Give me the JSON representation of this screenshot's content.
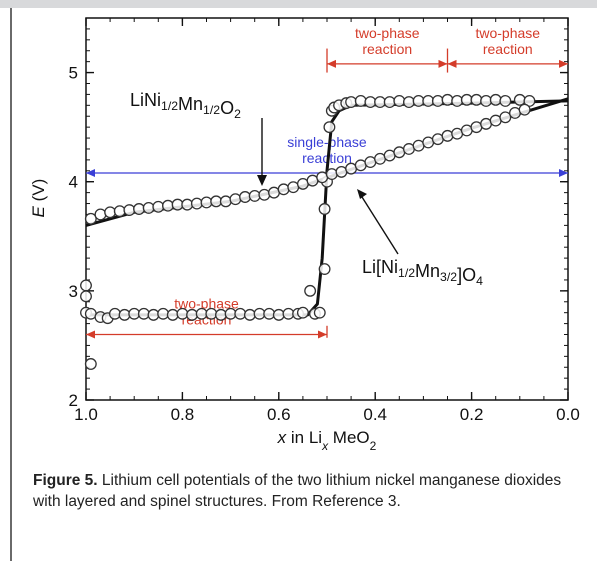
{
  "chart_data": {
    "type": "scatter",
    "xlim": [
      1.0,
      0.0
    ],
    "ylim": [
      2,
      5.5
    ],
    "x_ticks": [
      "1.0",
      "0.8",
      "0.6",
      "0.4",
      "0.2",
      "0.0"
    ],
    "y_ticks": [
      "2",
      "3",
      "4",
      "5"
    ],
    "ylabel_main": "E",
    "ylabel_unit": " (V)",
    "xlabel": {
      "pre": "x",
      "mid": " in Li",
      "sub1": "x",
      "post": " MeO",
      "sub2": "2"
    },
    "series": [
      {
        "label_parts": [
          {
            "t": "LiNi",
            "s": false
          },
          {
            "t": "1/2",
            "s": true
          },
          {
            "t": "Mn",
            "s": false
          },
          {
            "t": "1/2",
            "s": true
          },
          {
            "t": "O",
            "s": false
          },
          {
            "t": "2",
            "s": true
          }
        ],
        "points": [
          [
            1.0,
            2.8
          ],
          [
            0.99,
            2.79
          ],
          [
            0.97,
            2.76
          ],
          [
            0.955,
            2.75
          ],
          [
            0.94,
            2.79
          ],
          [
            0.92,
            2.78
          ],
          [
            0.9,
            2.79
          ],
          [
            0.88,
            2.79
          ],
          [
            0.86,
            2.78
          ],
          [
            0.84,
            2.79
          ],
          [
            0.82,
            2.78
          ],
          [
            0.8,
            2.79
          ],
          [
            0.78,
            2.78
          ],
          [
            0.76,
            2.79
          ],
          [
            0.74,
            2.79
          ],
          [
            0.72,
            2.78
          ],
          [
            0.7,
            2.79
          ],
          [
            0.68,
            2.79
          ],
          [
            0.66,
            2.78
          ],
          [
            0.64,
            2.79
          ],
          [
            0.62,
            2.79
          ],
          [
            0.6,
            2.78
          ],
          [
            0.58,
            2.79
          ],
          [
            0.56,
            2.79
          ],
          [
            0.55,
            2.8
          ],
          [
            0.535,
            3.0
          ],
          [
            0.525,
            2.79
          ],
          [
            0.515,
            2.8
          ],
          [
            0.505,
            3.2
          ],
          [
            0.505,
            3.75
          ],
          [
            0.5,
            4.0
          ],
          [
            0.495,
            4.5
          ],
          [
            0.49,
            4.65
          ],
          [
            0.485,
            4.68
          ],
          [
            0.475,
            4.7
          ],
          [
            0.46,
            4.72
          ],
          [
            0.45,
            4.73
          ],
          [
            0.43,
            4.74
          ],
          [
            0.41,
            4.73
          ],
          [
            0.39,
            4.73
          ],
          [
            0.37,
            4.73
          ],
          [
            0.35,
            4.74
          ],
          [
            0.33,
            4.73
          ],
          [
            0.31,
            4.74
          ],
          [
            0.29,
            4.74
          ],
          [
            0.27,
            4.74
          ],
          [
            0.25,
            4.75
          ],
          [
            0.23,
            4.74
          ],
          [
            0.21,
            4.75
          ],
          [
            0.19,
            4.75
          ],
          [
            0.17,
            4.74
          ],
          [
            0.15,
            4.75
          ],
          [
            0.13,
            4.74
          ],
          [
            0.1,
            4.75
          ],
          [
            0.08,
            4.74
          ],
          [
            1.0,
            3.05
          ],
          [
            1.0,
            2.95
          ],
          [
            0.99,
            2.33
          ]
        ],
        "curve": [
          [
            1.0,
            2.78
          ],
          [
            0.6,
            2.78
          ],
          [
            0.54,
            2.78
          ],
          [
            0.52,
            2.88
          ],
          [
            0.51,
            3.3
          ],
          [
            0.5,
            4.1
          ],
          [
            0.49,
            4.55
          ],
          [
            0.475,
            4.65
          ],
          [
            0.45,
            4.7
          ],
          [
            0.2,
            4.72
          ],
          [
            0.0,
            4.74
          ]
        ]
      },
      {
        "label_parts": [
          {
            "t": "Li[Ni",
            "s": false
          },
          {
            "t": "1/2",
            "s": true
          },
          {
            "t": "Mn",
            "s": false
          },
          {
            "t": "3/2",
            "s": true
          },
          {
            "t": "]O",
            "s": false
          },
          {
            "t": "4",
            "s": true
          }
        ],
        "points": [
          [
            0.99,
            3.66
          ],
          [
            0.97,
            3.7
          ],
          [
            0.95,
            3.72
          ],
          [
            0.93,
            3.73
          ],
          [
            0.91,
            3.74
          ],
          [
            0.89,
            3.75
          ],
          [
            0.87,
            3.76
          ],
          [
            0.85,
            3.77
          ],
          [
            0.83,
            3.78
          ],
          [
            0.81,
            3.79
          ],
          [
            0.79,
            3.79
          ],
          [
            0.77,
            3.8
          ],
          [
            0.75,
            3.81
          ],
          [
            0.73,
            3.82
          ],
          [
            0.71,
            3.82
          ],
          [
            0.69,
            3.84
          ],
          [
            0.67,
            3.86
          ],
          [
            0.65,
            3.87
          ],
          [
            0.63,
            3.88
          ],
          [
            0.61,
            3.9
          ],
          [
            0.59,
            3.93
          ],
          [
            0.57,
            3.95
          ],
          [
            0.55,
            3.98
          ],
          [
            0.53,
            4.01
          ],
          [
            0.51,
            4.04
          ],
          [
            0.49,
            4.07
          ],
          [
            0.47,
            4.09
          ],
          [
            0.45,
            4.12
          ],
          [
            0.43,
            4.15
          ],
          [
            0.41,
            4.18
          ],
          [
            0.39,
            4.21
          ],
          [
            0.37,
            4.24
          ],
          [
            0.35,
            4.27
          ],
          [
            0.33,
            4.3
          ],
          [
            0.31,
            4.33
          ],
          [
            0.29,
            4.36
          ],
          [
            0.27,
            4.39
          ],
          [
            0.25,
            4.42
          ],
          [
            0.23,
            4.44
          ],
          [
            0.21,
            4.47
          ],
          [
            0.19,
            4.5
          ],
          [
            0.17,
            4.53
          ],
          [
            0.15,
            4.56
          ],
          [
            0.13,
            4.59
          ],
          [
            0.11,
            4.63
          ],
          [
            0.09,
            4.66
          ]
        ],
        "curve": [
          [
            1.0,
            3.6
          ],
          [
            0.9,
            3.72
          ],
          [
            0.7,
            3.82
          ],
          [
            0.55,
            3.96
          ],
          [
            0.4,
            4.19
          ],
          [
            0.2,
            4.49
          ],
          [
            0.0,
            4.76
          ]
        ]
      }
    ],
    "annotations": {
      "single_phase": {
        "line1": "single-phase",
        "line2": "reaction",
        "y": 4.08,
        "x_from": 1.0,
        "x_to": 0.0
      },
      "two_phase_bottom": {
        "line1": "two-phase",
        "line2": "reaction",
        "y": 2.6,
        "x_from": 1.0,
        "x_to": 0.5
      },
      "two_phase_top_left": {
        "line1": "two-phase",
        "line2": "reaction",
        "y": 5.08,
        "x_from": 0.5,
        "x_to": 0.25
      },
      "two_phase_top_right": {
        "line1": "two-phase",
        "line2": "reaction",
        "y": 5.08,
        "x_from": 0.25,
        "x_to": 0.0
      }
    },
    "colors": {
      "blue": "#3a3fd6",
      "red": "#d43c2a",
      "axis": "#111111",
      "marker_edge": "#333333",
      "curve": "#111111"
    }
  },
  "caption": {
    "label": "Figure 5.",
    "text": "  Lithium cell potentials of the two lithium nickel manganese dioxides with layered and spinel structures. From Reference 3."
  }
}
